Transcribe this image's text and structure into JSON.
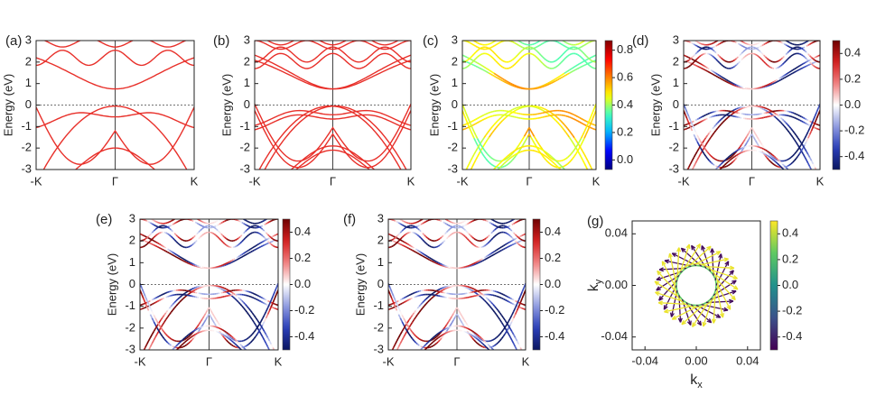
{
  "chart_data": [
    {
      "type": "line",
      "label": "(a)",
      "ylabel": "Energy (eV)",
      "categories": [
        "-K",
        "Γ",
        "K"
      ],
      "ylim": [
        -3,
        3
      ],
      "yticks": [
        -3,
        -2,
        -1,
        0,
        1,
        2,
        3
      ],
      "color": "#e8302a"
    },
    {
      "type": "line",
      "label": "(b)",
      "ylabel": "Energy (eV)",
      "categories": [
        "-K",
        "Γ",
        "K"
      ],
      "ylim": [
        -3,
        3
      ],
      "yticks": [
        -3,
        -2,
        -1,
        0,
        1,
        2,
        3
      ],
      "color": "#e8302a"
    },
    {
      "type": "line",
      "label": "(c)",
      "ylabel": "Energy (eV)",
      "categories": [
        "-K",
        "Γ",
        "K"
      ],
      "ylim": [
        -3,
        3
      ],
      "yticks": [
        -3,
        -2,
        -1,
        0,
        1,
        2,
        3
      ],
      "colormap": "jet",
      "colorbar": {
        "lim": [
          -0.07,
          0.87
        ],
        "ticks": [
          {
            "value": 0,
            "label": "0.0"
          },
          0.2,
          0.4,
          0.6,
          0.8
        ]
      }
    },
    {
      "type": "line",
      "label": "(d)",
      "ylabel": "Energy (eV)",
      "categories": [
        "-K",
        "Γ",
        "K"
      ],
      "ylim": [
        -3,
        3
      ],
      "yticks": [
        -3,
        -2,
        -1,
        0,
        1,
        2,
        3
      ],
      "colormap": "bwr",
      "colorbar": {
        "lim": [
          -0.5,
          0.5
        ],
        "ticks": [
          -0.4,
          -0.2,
          {
            "value": 0,
            "label": "0.0"
          },
          0.2,
          0.4
        ]
      }
    },
    {
      "type": "line",
      "label": "(e)",
      "ylabel": "Energy (eV)",
      "categories": [
        "-K",
        "Γ",
        "K"
      ],
      "ylim": [
        -3,
        3
      ],
      "yticks": [
        -3,
        -2,
        -1,
        0,
        1,
        2,
        3
      ],
      "colormap": "bwr",
      "colorbar": {
        "lim": [
          -0.5,
          0.5
        ],
        "ticks": [
          -0.4,
          -0.2,
          {
            "value": 0,
            "label": "0.0"
          },
          0.2,
          0.4
        ]
      }
    },
    {
      "type": "line",
      "label": "(f)",
      "ylabel": "Energy (eV)",
      "categories": [
        "-K",
        "Γ",
        "K"
      ],
      "ylim": [
        -3,
        3
      ],
      "yticks": [
        -3,
        -2,
        -1,
        0,
        1,
        2,
        3
      ],
      "colormap": "bwr",
      "colorbar": {
        "lim": [
          -0.5,
          0.5
        ],
        "ticks": [
          -0.4,
          -0.2,
          {
            "value": 0,
            "label": "0.0"
          },
          0.2,
          0.4
        ]
      }
    },
    {
      "type": "vector",
      "label": "(g)",
      "xlabel": {
        "main": "k",
        "sub": "x"
      },
      "ylabel": {
        "main": "k",
        "sub": "y"
      },
      "xlim": [
        -0.05,
        0.05
      ],
      "ylim": [
        -0.05,
        0.05
      ],
      "xticks": [
        -0.04,
        {
          "value": 0,
          "label": "0.00"
        },
        0.04
      ],
      "yticks": [
        -0.04,
        {
          "value": 0,
          "label": "0.00"
        },
        0.04
      ],
      "colormap": "viridis",
      "colorbar": {
        "lim": [
          -0.5,
          0.5
        ],
        "ticks": [
          -0.4,
          -0.2,
          {
            "value": 0,
            "label": "0.0"
          },
          0.2,
          0.4
        ]
      }
    }
  ]
}
